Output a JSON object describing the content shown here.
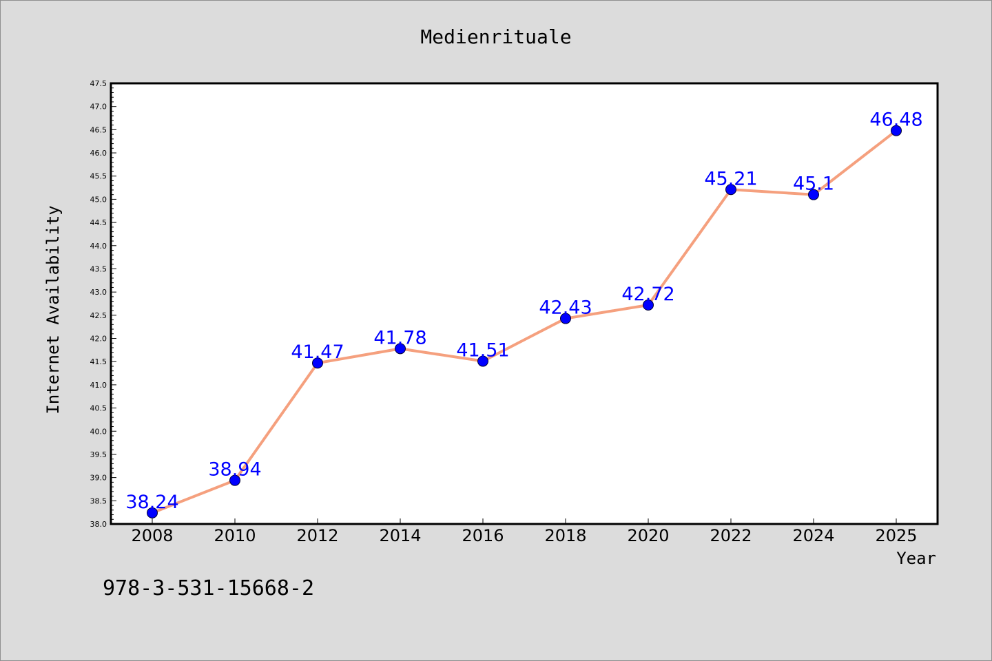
{
  "chart_data": {
    "type": "line",
    "title": "Medienrituale",
    "xlabel": "Year",
    "ylabel": "Internet Availability",
    "categories": [
      "2008",
      "2010",
      "2012",
      "2014",
      "2016",
      "2018",
      "2020",
      "2022",
      "2024",
      "2025"
    ],
    "series": [
      {
        "values": [
          38.24,
          38.94,
          41.47,
          41.78,
          41.51,
          42.43,
          42.72,
          45.21,
          45.1,
          46.48
        ]
      }
    ],
    "data_labels": [
      "38.24",
      "38.94",
      "41.47",
      "41.78",
      "41.51",
      "42.43",
      "42.72",
      "45.21",
      "45.1",
      "46.48"
    ],
    "ylim": [
      38.0,
      47.5
    ],
    "yticks": [
      "38.0",
      "38.5",
      "39.0",
      "39.5",
      "40.0",
      "40.5",
      "41.0",
      "41.5",
      "42.0",
      "42.5",
      "43.0",
      "43.5",
      "44.0",
      "44.5",
      "45.0",
      "45.5",
      "46.0",
      "46.5",
      "47.0",
      "47.5"
    ],
    "grid": false,
    "legend": "none",
    "colors": {
      "line": "#f5a07e",
      "marker": "#0000ff",
      "label": "#0000ff",
      "background": "#dcdcdc",
      "plot_background": "#ffffff"
    }
  },
  "footer_text": "978-3-531-15668-2"
}
